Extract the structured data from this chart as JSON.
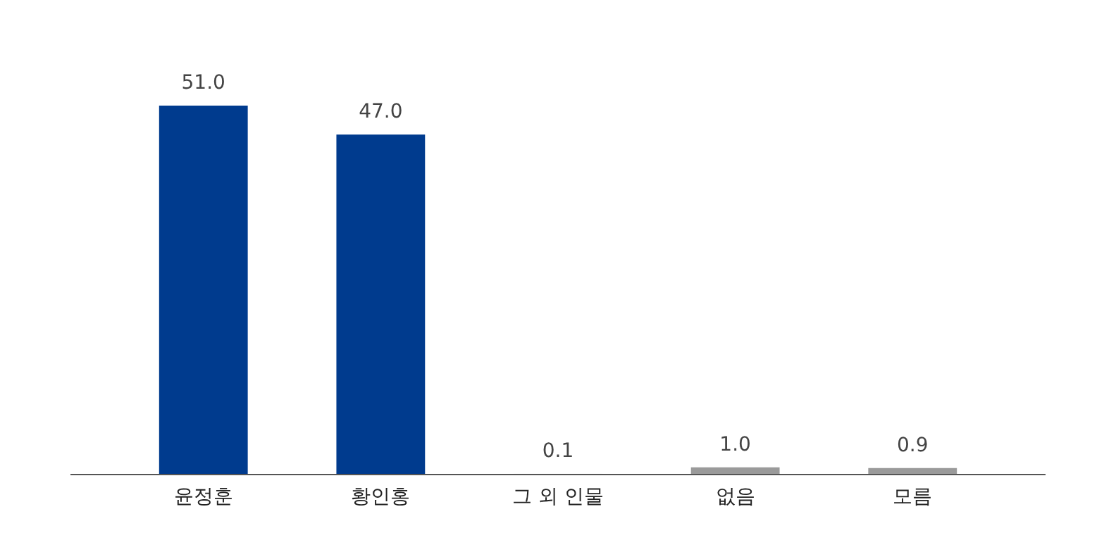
{
  "chart_data": {
    "type": "bar",
    "categories": [
      "윤정훈",
      "황인홍",
      "그 외 인물",
      "없음",
      "모름"
    ],
    "values": [
      51.0,
      47.0,
      0.1,
      1.0,
      0.9
    ],
    "colors": [
      "#003b8e",
      "#003b8e",
      "#9a9a9a",
      "#9a9a9a",
      "#9a9a9a"
    ],
    "value_labels": [
      "51.0",
      "47.0",
      "0.1",
      "1.0",
      "0.9"
    ]
  }
}
